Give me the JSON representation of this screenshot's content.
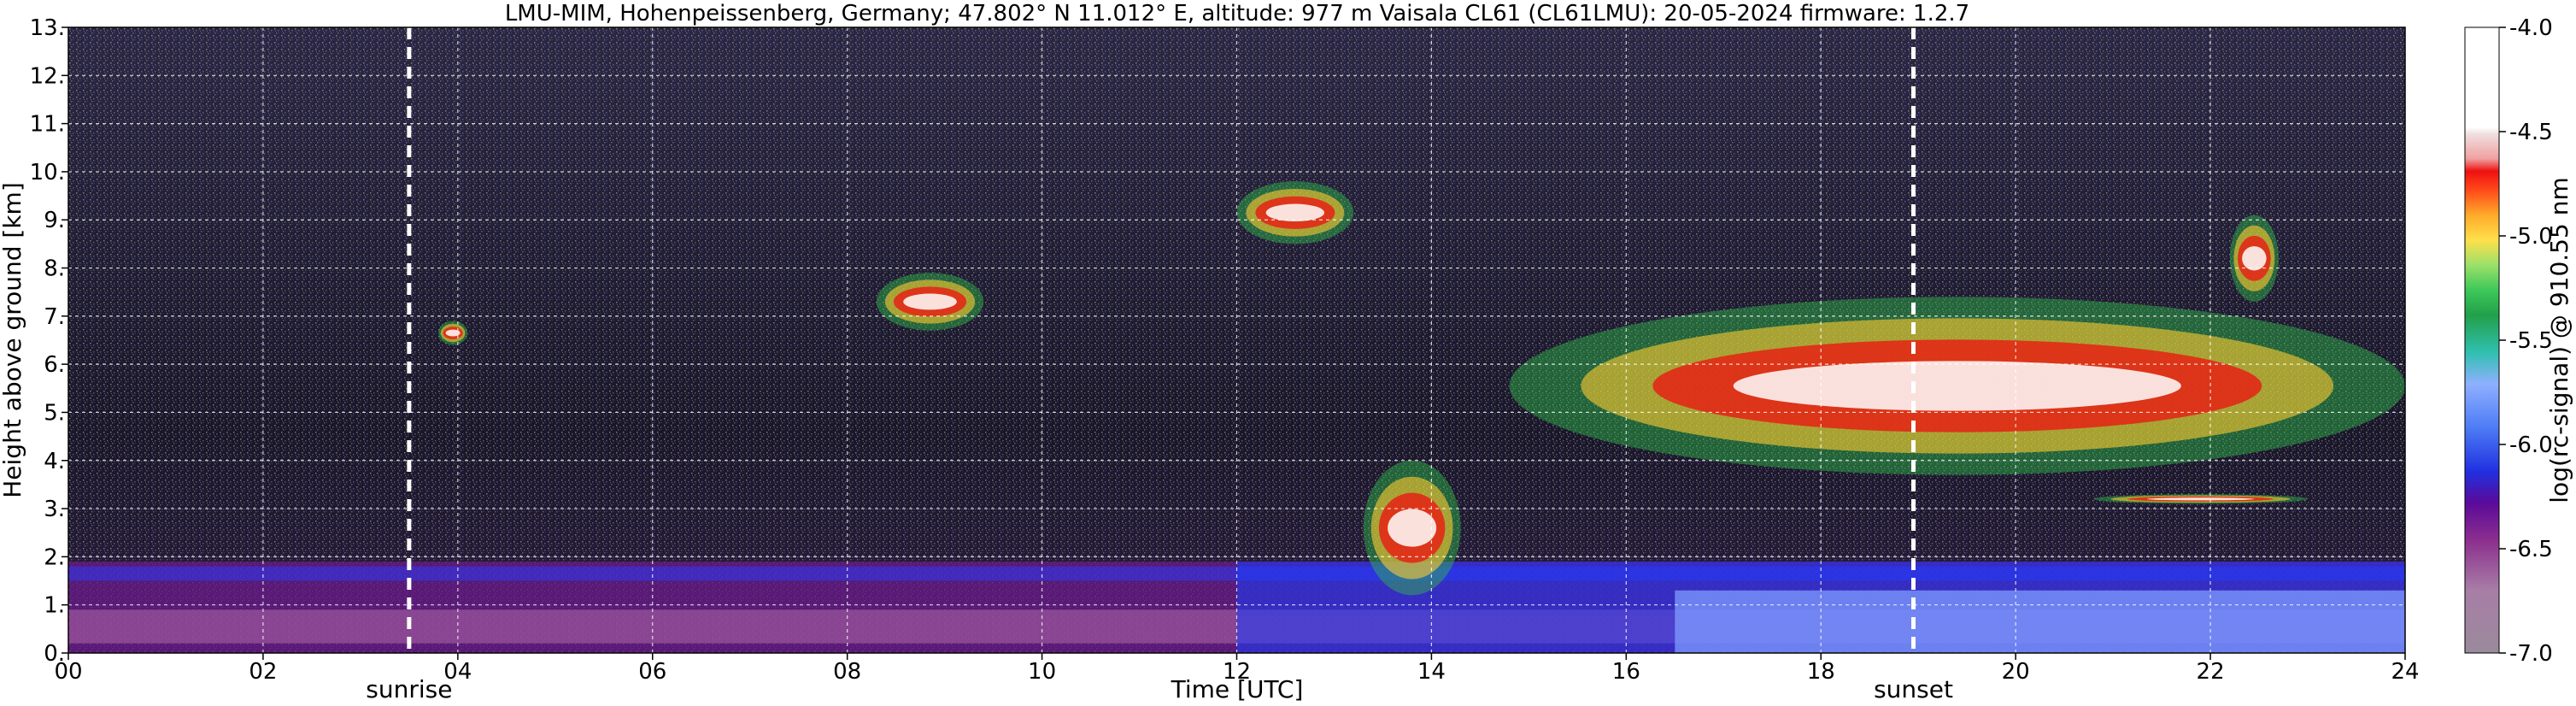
{
  "chart_data": {
    "type": "heatmap",
    "title": "LMU-MIM, Hohenpeissenberg, Germany; 47.802° N 11.012° E, altitude: 977 m    Vaisala CL61 (CL61LMU): 20-05-2024    firmware: 1.2.7",
    "xlabel": "Time [UTC]",
    "ylabel": "Height above ground [km]",
    "colorbar_label": "log(rc-signal) @ 910.55 nm",
    "xlim": [
      0,
      24
    ],
    "ylim": [
      0,
      13
    ],
    "clim": [
      -7.0,
      -4.0
    ],
    "x_ticks": [
      0,
      2,
      4,
      6,
      8,
      10,
      12,
      14,
      16,
      18,
      20,
      22,
      24
    ],
    "x_tick_labels": [
      "00",
      "02",
      "04",
      "06",
      "08",
      "10",
      "12",
      "14",
      "16",
      "18",
      "20",
      "22",
      "24"
    ],
    "y_ticks": [
      0,
      1,
      2,
      3,
      4,
      5,
      6,
      7,
      8,
      9,
      10,
      11,
      12,
      13
    ],
    "y_tick_labels": [
      "0.",
      "1.",
      "2.",
      "3.",
      "4.",
      "5.",
      "6.",
      "7.",
      "8.",
      "9.",
      "10.",
      "11.",
      "12.",
      "13."
    ],
    "colorbar_ticks": [
      -7.0,
      -6.5,
      -6.0,
      -5.5,
      -5.0,
      -4.5,
      -4.0
    ],
    "colorbar_tick_labels": [
      "-7.0",
      "-6.5",
      "-6.0",
      "-5.5",
      "-5.0",
      "-4.5",
      "-4.0"
    ],
    "grid": true,
    "annotations": [
      {
        "label": "sunrise",
        "x": 3.5
      },
      {
        "label": "sunset",
        "x": 18.95
      }
    ],
    "features": [
      {
        "kind": "boundary_layer",
        "x": [
          0,
          24
        ],
        "y": [
          0,
          1.9
        ]
      },
      {
        "kind": "cloud",
        "x": [
          3.8,
          4.1
        ],
        "y": [
          6.4,
          6.9
        ]
      },
      {
        "kind": "cloud",
        "x": [
          8.3,
          9.4
        ],
        "y": [
          6.7,
          7.9
        ]
      },
      {
        "kind": "cloud",
        "x": [
          13.3,
          14.3
        ],
        "y": [
          1.2,
          4.0
        ]
      },
      {
        "kind": "cloud",
        "x": [
          12.0,
          13.2
        ],
        "y": [
          8.5,
          9.8
        ]
      },
      {
        "kind": "cloud",
        "x": [
          14.8,
          24
        ],
        "y": [
          3.7,
          7.4
        ]
      },
      {
        "kind": "cloud",
        "x": [
          22.2,
          22.7
        ],
        "y": [
          7.3,
          9.1
        ]
      },
      {
        "kind": "cloud",
        "x": [
          20.8,
          23.0
        ],
        "y": [
          3.1,
          3.3
        ]
      }
    ]
  }
}
